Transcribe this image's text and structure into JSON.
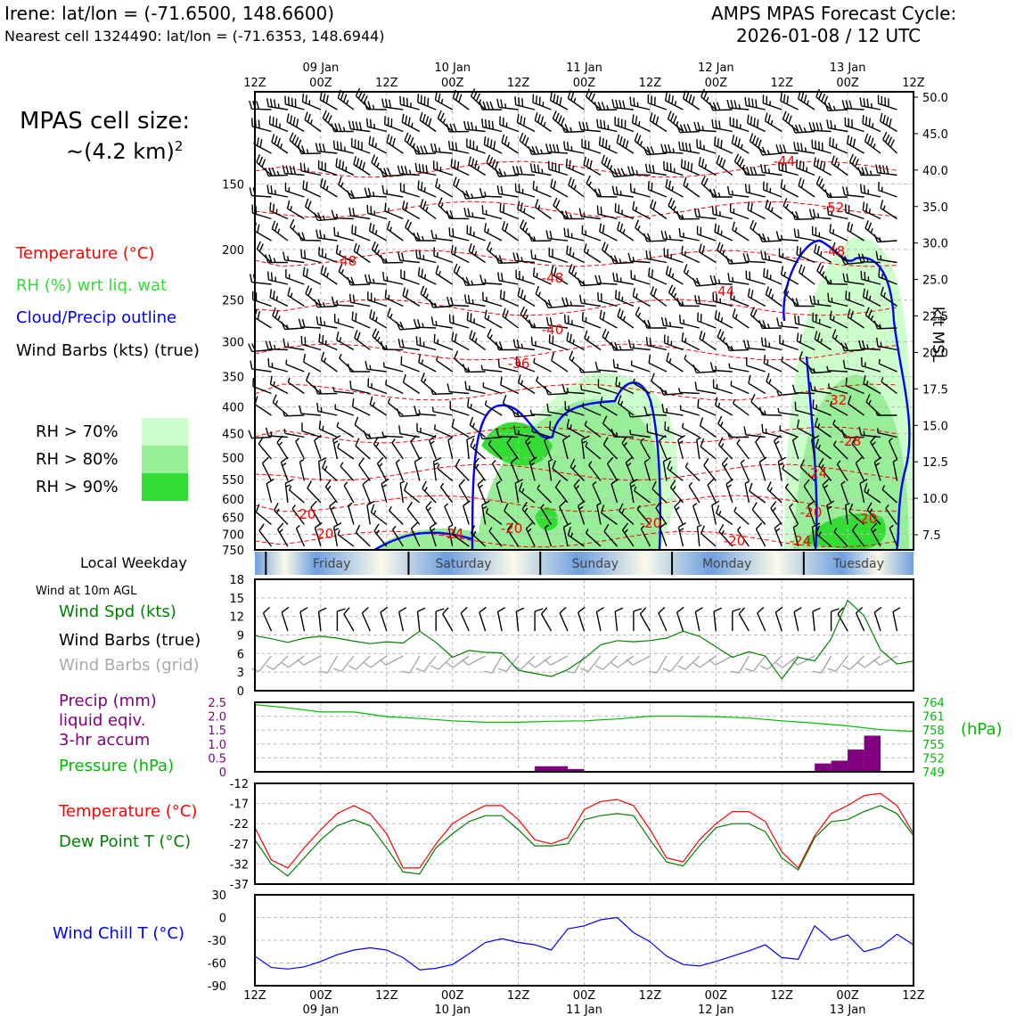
{
  "header": {
    "location_line": "Irene: lat/lon = (-71.6500, 148.6600)",
    "cell_line": "Nearest cell 1324490: lat/lon = (-71.6353, 148.6944)",
    "cycle_line1": "AMPS MPAS Forecast Cycle:",
    "cycle_line2": "2026-01-08 / 12 UTC"
  },
  "cell_size": {
    "line1": "MPAS cell size:",
    "line2": "~(4.2 km)",
    "exponent": "2"
  },
  "legend_top": {
    "temperature": "Temperature (°C)",
    "rh": "RH (%) wrt liq. wat",
    "cloud": "Cloud/Precip outline",
    "wind": "Wind Barbs (kts) (true)",
    "rh70": "RH > 70%",
    "rh80": "RH > 80%",
    "rh90": "RH > 90%"
  },
  "colors": {
    "temperature": "#ff0000",
    "rh_text": "#33dd33",
    "cloud": "#0000ff",
    "rh70": "#ccffcc",
    "rh80": "#99ee99",
    "rh90": "#33dd33",
    "wind_speed": "#008000",
    "grid_barbs": "#aaaaaa",
    "precip": "#800080",
    "pressure": "#00bb00",
    "dewpoint": "#008000",
    "windchill": "#0000ff"
  },
  "time_axis": {
    "top_ticks": [
      "12Z",
      "00Z",
      "12Z",
      "00Z",
      "12Z",
      "00Z",
      "12Z",
      "00Z",
      "12Z",
      "00Z",
      "12Z"
    ],
    "top_days": [
      "09 Jan",
      "10 Jan",
      "11 Jan",
      "12 Jan",
      "13 Jan"
    ],
    "bottom_ticks": [
      "12Z",
      "00Z",
      "12Z",
      "00Z",
      "12Z",
      "00Z",
      "12Z",
      "00Z",
      "12Z",
      "00Z",
      "12Z"
    ],
    "bottom_days": [
      "09 Jan",
      "10 Jan",
      "11 Jan",
      "12 Jan",
      "13 Jan"
    ]
  },
  "profile": {
    "pressure_ticks": [
      "150",
      "200",
      "250",
      "300",
      "350",
      "400",
      "450",
      "500",
      "550",
      "600",
      "650",
      "700",
      "750"
    ],
    "height_ticks": [
      "50.0",
      "45.0",
      "40.0",
      "35.0",
      "30.0",
      "25.0",
      "22.5",
      "20.0",
      "17.5",
      "15.0",
      "12.5",
      "10.0",
      "7.5"
    ],
    "height_label": "kft MSL",
    "temp_labels": [
      "-44",
      "-52",
      "-48",
      "-48",
      "-48",
      "-44",
      "-40",
      "-36",
      "-32",
      "-28",
      "-24",
      "-20",
      "-20",
      "-20",
      "-20",
      "-24",
      "-20",
      "-20",
      "-24",
      "-20"
    ]
  },
  "weekday": {
    "label": "Local Weekday",
    "days": [
      "Friday",
      "Saturday",
      "Sunday",
      "Monday",
      "Tuesday"
    ]
  },
  "wind_panel": {
    "subtitle": "Wind at 10m AGL",
    "spd_label": "Wind Spd (kts)",
    "barbs_true": "Wind Barbs (true)",
    "barbs_grid": "Wind Barbs (grid)",
    "yticks": [
      "18",
      "15",
      "12",
      "9",
      "6",
      "3",
      "0"
    ]
  },
  "precip_panel": {
    "precip_l1": "Precip (mm)",
    "precip_l2": "liquid eqiv.",
    "precip_l3": "3-hr accum",
    "pressure_label": "Pressure (hPa)",
    "left_ticks": [
      "2.5",
      "2.0",
      "1.5",
      "1.0",
      "0.5",
      "0"
    ],
    "right_ticks": [
      "764",
      "761",
      "758",
      "755",
      "752",
      "749"
    ],
    "right_unit": "(hPa)"
  },
  "temp_panel": {
    "temp_label": "Temperature (°C)",
    "dew_label": "Dew Point T (°C)",
    "yticks": [
      "-12",
      "-17",
      "-22",
      "-27",
      "-32",
      "-37"
    ]
  },
  "chill_panel": {
    "label": "Wind Chill T (°C)",
    "yticks": [
      "30",
      "0",
      "-30",
      "-60",
      "-90"
    ]
  },
  "chart_data": [
    {
      "type": "line",
      "title": "Wind at 10m AGL",
      "x_hours": [
        0,
        3,
        6,
        9,
        12,
        15,
        18,
        21,
        24,
        27,
        30,
        33,
        36,
        39,
        42,
        45,
        48,
        51,
        54,
        57,
        60,
        63,
        66,
        69,
        72,
        75,
        78,
        81,
        84,
        87,
        90,
        93,
        96,
        99,
        102,
        105,
        108,
        111,
        114,
        117,
        120
      ],
      "series": [
        {
          "name": "Wind Spd (kts)",
          "values": [
            8.9,
            8.4,
            7.8,
            8.5,
            8.8,
            8.5,
            8.0,
            7.6,
            7.9,
            7.7,
            9.6,
            7.8,
            5.4,
            6.5,
            6.2,
            6.1,
            3.3,
            2.8,
            2.3,
            3.4,
            5.2,
            7.4,
            8.1,
            7.9,
            8.1,
            8.5,
            9.6,
            8.8,
            7.1,
            5.4,
            6.3,
            5.6,
            1.9,
            5.4,
            4.8,
            8.4,
            14.6,
            12.1,
            6.6,
            4.3,
            4.8
          ]
        }
      ],
      "ylim": [
        0,
        18
      ]
    },
    {
      "type": "bar",
      "title": "Precip (mm) liquid eqiv. 3-hr accum",
      "x_hours": [
        54,
        57,
        60,
        105,
        108,
        111,
        114
      ],
      "values": [
        0.2,
        0.2,
        0.1,
        0.3,
        0.4,
        0.8,
        1.3
      ],
      "ylim": [
        0,
        2.5
      ]
    },
    {
      "type": "line",
      "title": "Pressure (hPa)",
      "x_hours": [
        0,
        6,
        12,
        18,
        24,
        30,
        36,
        42,
        48,
        54,
        60,
        66,
        72,
        78,
        84,
        90,
        96,
        102,
        108,
        114,
        120
      ],
      "values": [
        763.5,
        762.8,
        761.9,
        761.9,
        760.9,
        760.5,
        760.0,
        759.7,
        759.7,
        759.9,
        760.0,
        760.4,
        761.0,
        761.0,
        760.9,
        760.6,
        760.0,
        759.5,
        758.9,
        758.1,
        757.7
      ],
      "ylim": [
        749,
        764
      ]
    },
    {
      "type": "line",
      "title": "Temperature / Dew Point",
      "x_hours": [
        0,
        3,
        6,
        9,
        12,
        15,
        18,
        21,
        24,
        27,
        30,
        33,
        36,
        39,
        42,
        45,
        48,
        51,
        54,
        57,
        60,
        63,
        66,
        69,
        72,
        75,
        78,
        81,
        84,
        87,
        90,
        93,
        96,
        99,
        102,
        105,
        108,
        111,
        114,
        117,
        120
      ],
      "series": [
        {
          "name": "Temperature (°C)",
          "values": [
            -23,
            -31,
            -33,
            -28,
            -23.5,
            -19.5,
            -17.5,
            -19.5,
            -24.5,
            -33,
            -33,
            -27,
            -22,
            -19.5,
            -17.5,
            -17.5,
            -21,
            -26,
            -27,
            -25.5,
            -18.5,
            -16.5,
            -16,
            -17.5,
            -23.5,
            -30.5,
            -31.5,
            -26,
            -22,
            -19,
            -19,
            -21.5,
            -29,
            -33,
            -25,
            -19.5,
            -17.5,
            -15,
            -14.5,
            -17.5,
            -24.5
          ]
        },
        {
          "name": "Dew Point T (°C)",
          "values": [
            -26,
            -32,
            -35,
            -30.5,
            -26,
            -22.5,
            -21,
            -22.5,
            -28,
            -34,
            -34.5,
            -28,
            -24.5,
            -21.5,
            -20,
            -20,
            -23.5,
            -27.5,
            -27.5,
            -27,
            -21,
            -20,
            -19.5,
            -20,
            -26,
            -31.5,
            -32.5,
            -27.5,
            -23,
            -22,
            -22,
            -24,
            -30.5,
            -33.5,
            -25.5,
            -21.5,
            -21,
            -19,
            -17.5,
            -19.5,
            -25
          ]
        }
      ],
      "ylim": [
        -37,
        -12
      ]
    },
    {
      "type": "line",
      "title": "Wind Chill T (°C)",
      "x_hours": [
        0,
        3,
        6,
        9,
        12,
        15,
        18,
        21,
        24,
        27,
        30,
        33,
        36,
        39,
        42,
        45,
        48,
        51,
        54,
        57,
        60,
        63,
        66,
        69,
        72,
        75,
        78,
        81,
        84,
        87,
        90,
        93,
        96,
        99,
        102,
        105,
        108,
        111,
        114,
        117,
        120
      ],
      "series": [
        {
          "name": "Wind Chill T (°C)",
          "values": [
            -51,
            -66,
            -68,
            -65,
            -58,
            -49,
            -43,
            -40,
            -43,
            -53,
            -69,
            -67,
            -62,
            -48,
            -33,
            -28,
            -33,
            -36,
            -43,
            -15,
            -11,
            -3,
            0,
            -20,
            -32,
            -51,
            -62,
            -64,
            -58,
            -51,
            -44,
            -36,
            -53,
            -55,
            -11,
            -30,
            -23,
            -45,
            -39,
            -22,
            -36
          ]
        }
      ],
      "ylim": [
        -90,
        30
      ]
    }
  ]
}
